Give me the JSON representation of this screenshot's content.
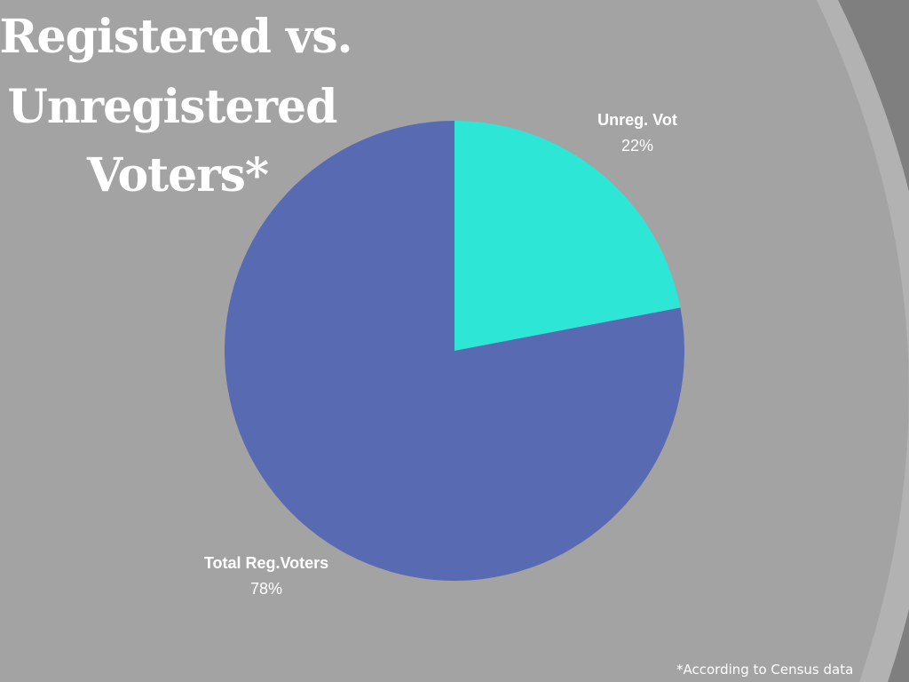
{
  "title_lines": [
    "Registered vs.",
    "Unregistered",
    "Voters*"
  ],
  "footnote": "*According to Census data",
  "colors": {
    "background": "#a3a3a3",
    "arc_dark": "#7f7f7f",
    "arc_light": "#b2b2b2",
    "text": "#ffffff"
  },
  "chart_data": {
    "type": "pie",
    "title": "Registered vs. Unregistered Voters*",
    "slices": [
      {
        "label": "Unreg. Vot",
        "value": 22,
        "display": "22%",
        "color": "#2ee6d6"
      },
      {
        "label": "Total Reg.Voters",
        "value": 78,
        "display": "78%",
        "color": "#586bb2"
      }
    ]
  }
}
